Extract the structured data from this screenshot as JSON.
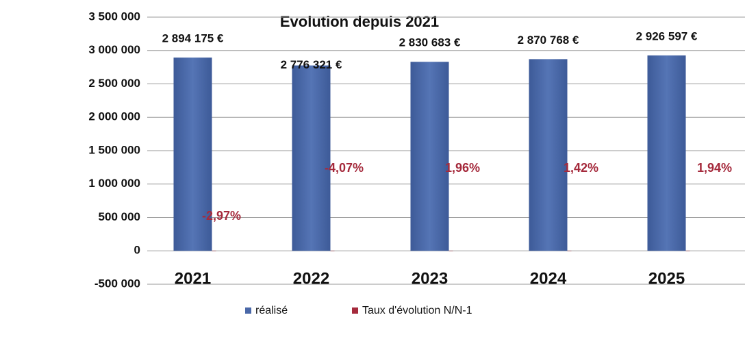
{
  "chart_data": {
    "type": "bar",
    "title": "Evolution depuis 2021",
    "categories": [
      "2021",
      "2022",
      "2023",
      "2024",
      "2025"
    ],
    "series": [
      {
        "name": "réalisé",
        "color": "#4a68a8",
        "values": [
          2894175,
          2776321,
          2830683,
          2870768,
          2926597
        ],
        "value_labels": [
          "2 894 175 €",
          "2 776 321 €",
          "2 830 683 €",
          "2 870 768 €",
          "2 926 597 €"
        ]
      },
      {
        "name": "Taux d'évolution N/N-1",
        "color": "#a52a3c",
        "values": [
          -2.97,
          -4.07,
          1.96,
          1.42,
          1.94
        ],
        "value_labels": [
          "-2,97%",
          "-4,07%",
          "1,96%",
          "1,42%",
          "1,94%"
        ]
      }
    ],
    "ylim": [
      -500000,
      3500000
    ],
    "yticks": [
      {
        "value": -500000,
        "label": "-500 000"
      },
      0,
      {
        "value": 500000,
        "label": "500 000"
      },
      {
        "value": 1000000,
        "label": "1 000 000"
      },
      {
        "value": 1500000,
        "label": "1 500 000"
      },
      {
        "value": 2000000,
        "label": "2 000 000"
      },
      {
        "value": 2500000,
        "label": "2 500 000"
      },
      {
        "value": 3000000,
        "label": "3 000 000"
      },
      {
        "value": 3500000,
        "label": "3 500 000"
      }
    ],
    "grid": true,
    "legend": "bottom"
  }
}
